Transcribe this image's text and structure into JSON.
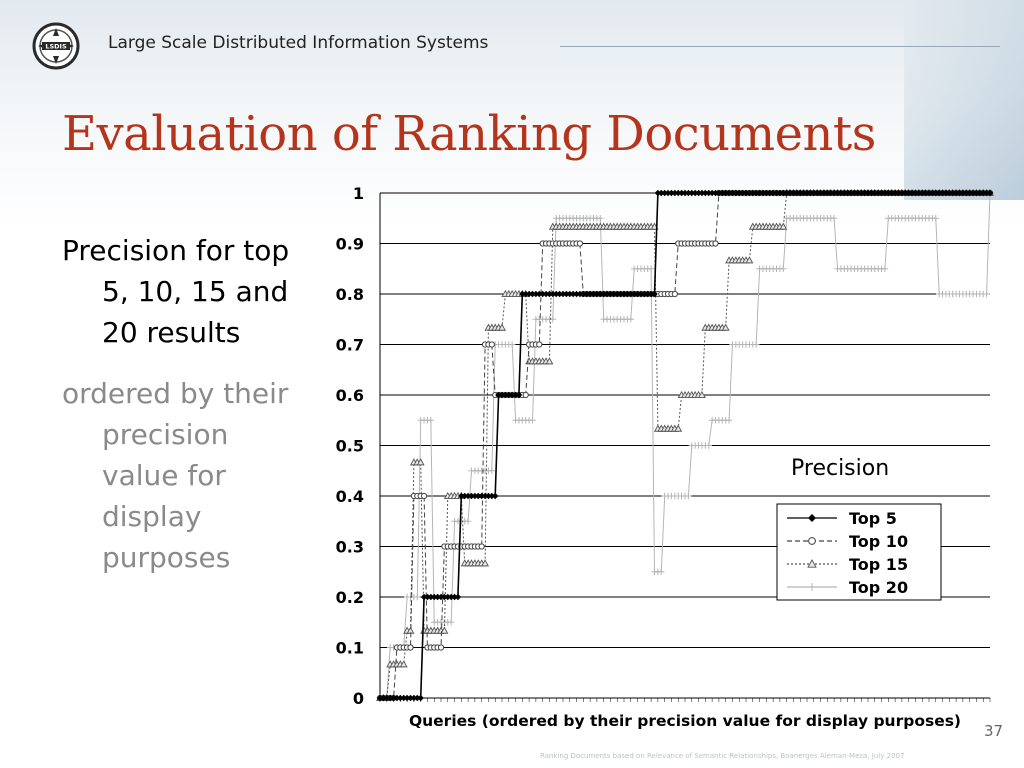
{
  "header": {
    "logo_text": "LSDIS",
    "title": "Large Scale Distributed Information Systems"
  },
  "slide": {
    "title": "Evaluation of Ranking Documents",
    "bullets": [
      {
        "text": "Precision for top 5, 10, 15 and 20 results"
      },
      {
        "text": "ordered by their precision value for display purposes"
      }
    ],
    "slide_number": "37",
    "footer_note": "Ranking Documents based on Relevance of Semantic Relationships, Boanerges Aleman-Meza, July 2007"
  },
  "chart_data": {
    "type": "line",
    "title": "Precision",
    "xlabel": "Queries (ordered by their precision value for display purposes)",
    "ylabel": "",
    "ylim": [
      0,
      1
    ],
    "yticks": [
      "0",
      "0.1",
      "0.2",
      "0.3",
      "0.4",
      "0.5",
      "0.6",
      "0.7",
      "0.8",
      "0.9",
      "1"
    ],
    "grid": "horizontal",
    "legend_position": "lower-right",
    "x_count": 180,
    "series": [
      {
        "name": "Top  5",
        "marker": "diamond",
        "dash": "solid",
        "color": "#000000",
        "segments": [
          [
            0,
            0.0
          ],
          [
            13,
            0.2
          ],
          [
            24,
            0.4
          ],
          [
            35,
            0.6
          ],
          [
            42,
            0.8
          ],
          [
            82,
            1.0
          ],
          [
            180,
            1.0
          ]
        ]
      },
      {
        "name": "Top 10",
        "marker": "circle",
        "dash": "dashed",
        "color": "#444444",
        "segments": [
          [
            0,
            0.0
          ],
          [
            5,
            0.1
          ],
          [
            10,
            0.4
          ],
          [
            14,
            0.1
          ],
          [
            19,
            0.3
          ],
          [
            31,
            0.7
          ],
          [
            34,
            0.6
          ],
          [
            44,
            0.7
          ],
          [
            48,
            0.9
          ],
          [
            60,
            0.8
          ],
          [
            83,
            0.8
          ],
          [
            88,
            0.9
          ],
          [
            100,
            1.0
          ],
          [
            180,
            1.0
          ]
        ]
      },
      {
        "name": "Top 15",
        "marker": "triangle",
        "dash": "dotted",
        "color": "#555555",
        "segments": [
          [
            0,
            0.0
          ],
          [
            3,
            0.0667
          ],
          [
            8,
            0.1333
          ],
          [
            10,
            0.4667
          ],
          [
            13,
            0.1333
          ],
          [
            20,
            0.4
          ],
          [
            25,
            0.2667
          ],
          [
            32,
            0.7333
          ],
          [
            37,
            0.8
          ],
          [
            44,
            0.6667
          ],
          [
            51,
            0.9333
          ],
          [
            80,
            0.9333
          ],
          [
            82,
            0.5333
          ],
          [
            89,
            0.6
          ],
          [
            96,
            0.7333
          ],
          [
            103,
            0.8667
          ],
          [
            110,
            0.9333
          ],
          [
            120,
            1.0
          ],
          [
            180,
            1.0
          ]
        ]
      },
      {
        "name": "Top 20",
        "marker": "plus",
        "dash": "solid",
        "color": "#b5b5b5",
        "segments": [
          [
            0,
            0.0
          ],
          [
            3,
            0.1
          ],
          [
            8,
            0.2
          ],
          [
            12,
            0.55
          ],
          [
            16,
            0.15
          ],
          [
            22,
            0.35
          ],
          [
            27,
            0.45
          ],
          [
            34,
            0.7
          ],
          [
            40,
            0.55
          ],
          [
            46,
            0.75
          ],
          [
            52,
            0.95
          ],
          [
            66,
            0.75
          ],
          [
            75,
            0.85
          ],
          [
            81,
            0.25
          ],
          [
            84,
            0.4
          ],
          [
            92,
            0.5
          ],
          [
            98,
            0.55
          ],
          [
            104,
            0.7
          ],
          [
            112,
            0.85
          ],
          [
            120,
            0.95
          ],
          [
            135,
            0.85
          ],
          [
            150,
            0.95
          ],
          [
            165,
            0.8
          ],
          [
            180,
            1.0
          ]
        ]
      }
    ]
  },
  "colors": {
    "title": "#b5341c",
    "secondary_text": "#8a8a8a",
    "grid": "#000000"
  }
}
